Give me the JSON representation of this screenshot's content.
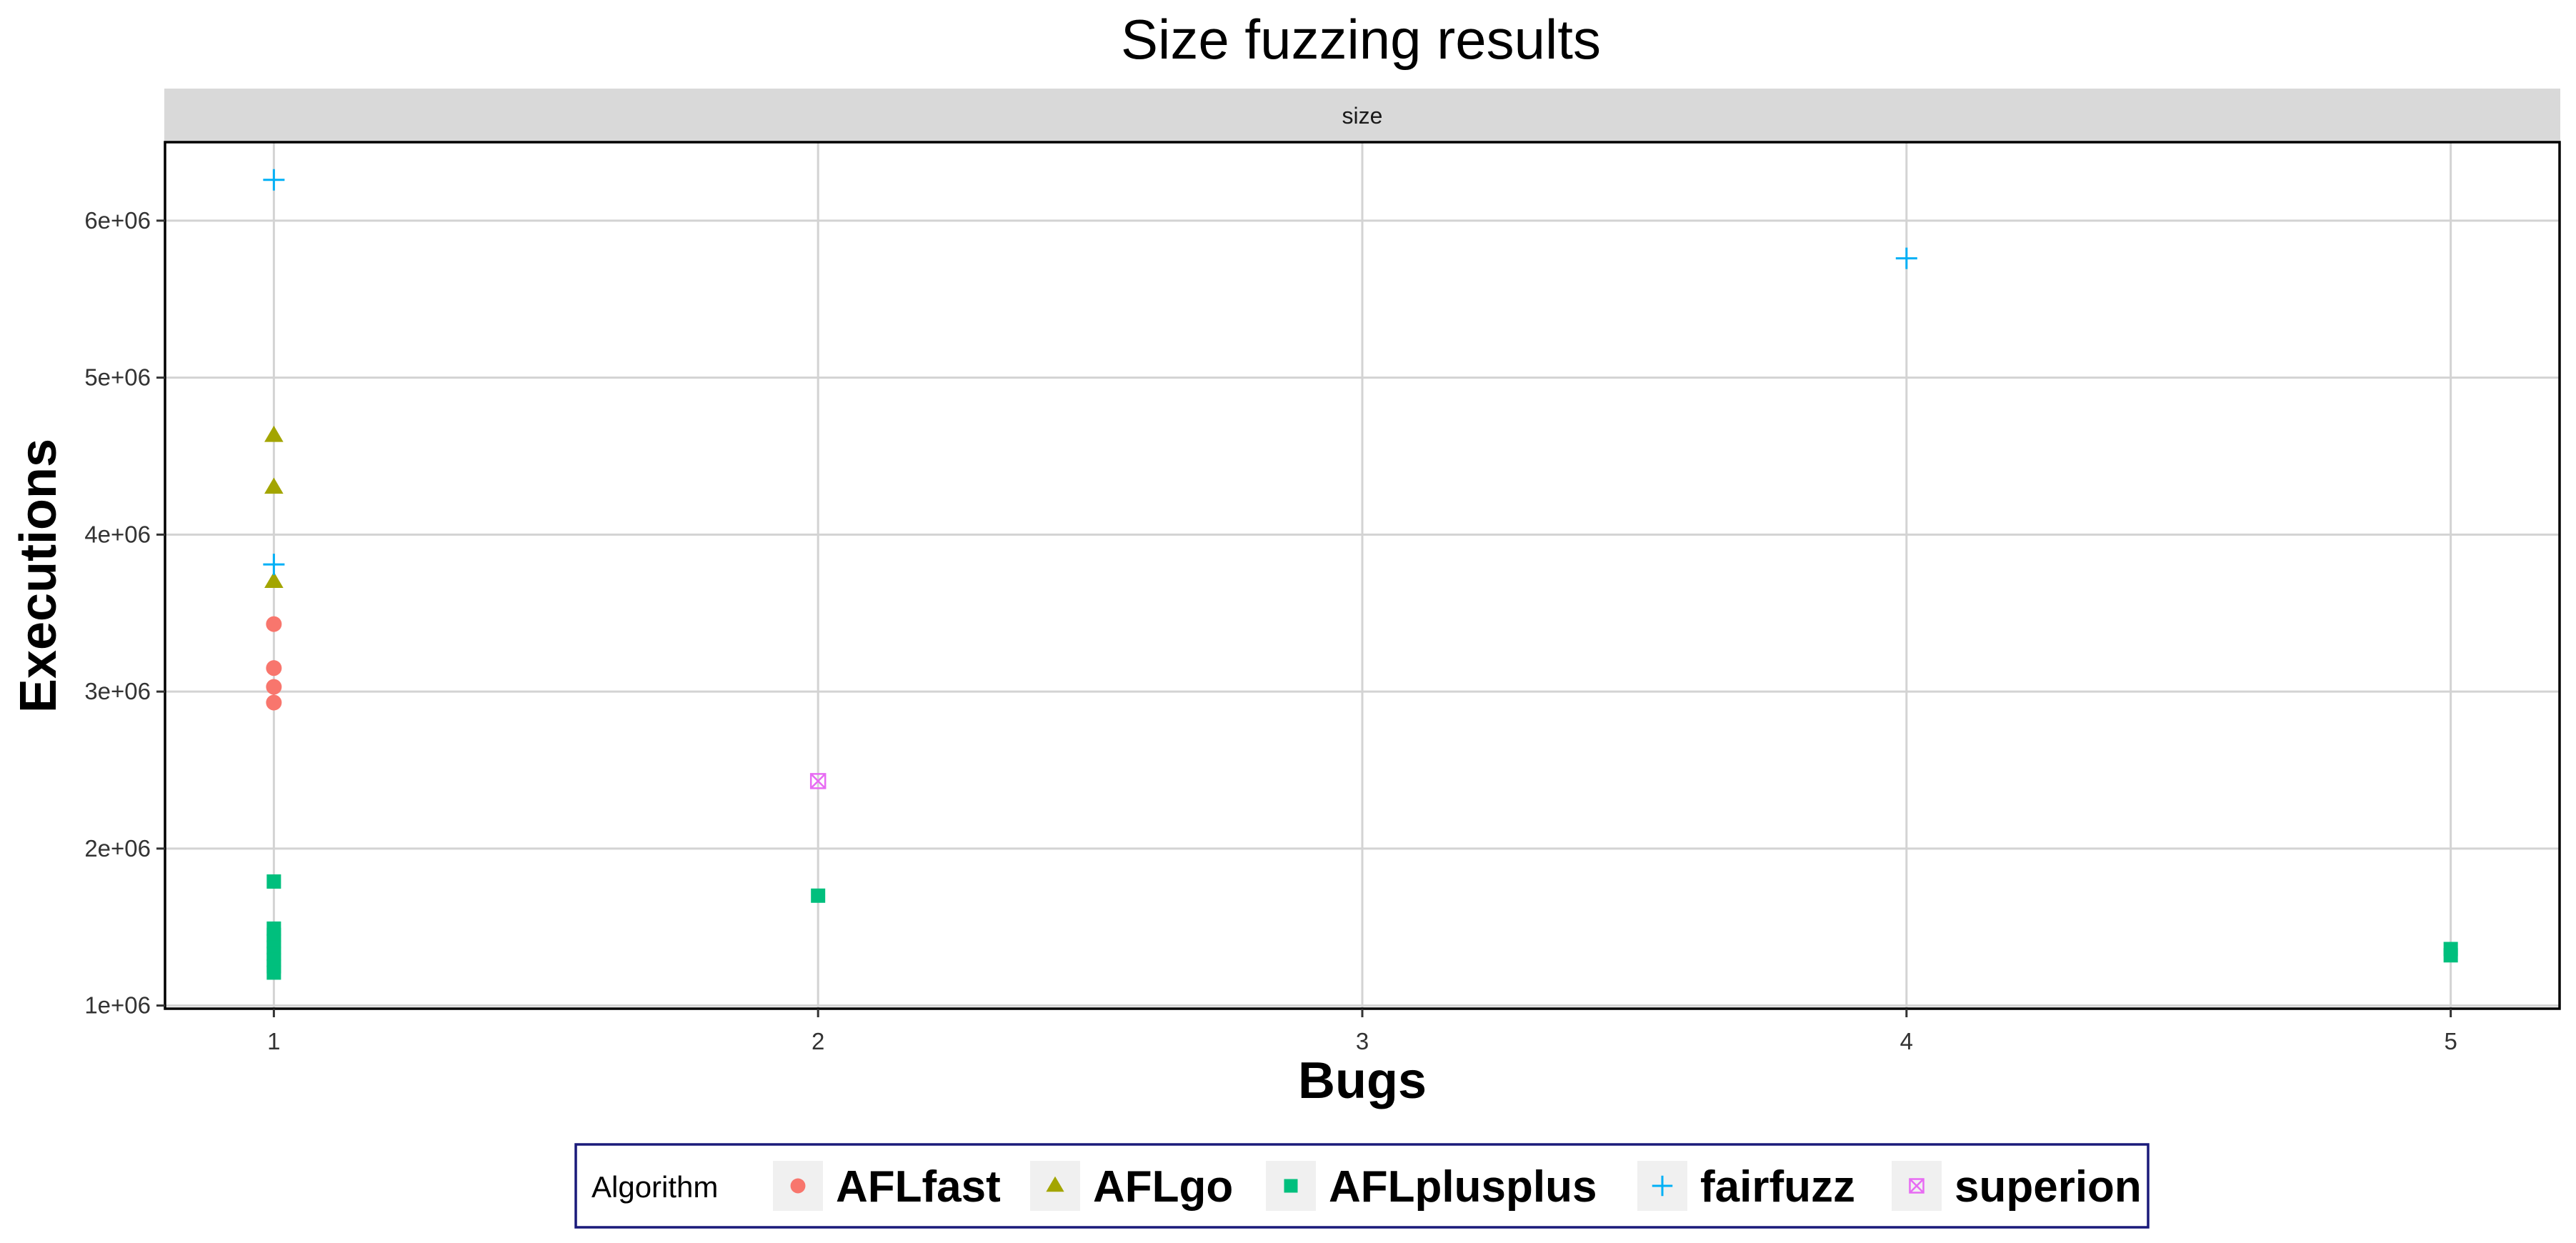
{
  "chart_data": {
    "type": "scatter",
    "title": "Size fuzzing results",
    "facet_label": "size",
    "xlabel": "Bugs",
    "ylabel": "Executions",
    "xlim": [
      0.8,
      5.2
    ],
    "ylim": [
      980000,
      6500000
    ],
    "x_ticks": [
      1,
      2,
      3,
      4,
      5
    ],
    "x_tick_labels": [
      "1",
      "2",
      "3",
      "4",
      "5"
    ],
    "y_ticks": [
      1000000,
      2000000,
      3000000,
      4000000,
      5000000,
      6000000
    ],
    "y_tick_labels": [
      "1e+06",
      "2e+06",
      "3e+06",
      "4e+06",
      "5e+06",
      "6e+06"
    ],
    "grid": true,
    "legend": {
      "title": "Algorithm",
      "position": "bottom"
    },
    "series": [
      {
        "name": "AFLfast",
        "shape": "circle",
        "color": "#F8766D",
        "points": [
          [
            1,
            3430000
          ],
          [
            1,
            3150000
          ],
          [
            1,
            3030000
          ],
          [
            1,
            2930000
          ]
        ]
      },
      {
        "name": "AFLgo",
        "shape": "triangle",
        "color": "#A3A500",
        "points": [
          [
            1,
            4630000
          ],
          [
            1,
            4300000
          ],
          [
            1,
            3700000
          ]
        ]
      },
      {
        "name": "AFLplusplus",
        "shape": "square",
        "color": "#00BF7D",
        "points": [
          [
            1,
            1790000
          ],
          [
            1,
            1490000
          ],
          [
            1,
            1450000
          ],
          [
            1,
            1410000
          ],
          [
            1,
            1370000
          ],
          [
            1,
            1330000
          ],
          [
            1,
            1290000
          ],
          [
            1,
            1250000
          ],
          [
            1,
            1210000
          ],
          [
            2,
            1700000
          ],
          [
            5,
            1360000
          ],
          [
            5,
            1320000
          ]
        ]
      },
      {
        "name": "fairfuzz",
        "shape": "plus",
        "color": "#00B0F6",
        "points": [
          [
            1,
            6260000
          ],
          [
            1,
            3810000
          ],
          [
            4,
            5760000
          ]
        ]
      },
      {
        "name": "superion",
        "shape": "square-x",
        "color": "#E76BF3",
        "points": [
          [
            2,
            2430000
          ]
        ]
      }
    ]
  }
}
